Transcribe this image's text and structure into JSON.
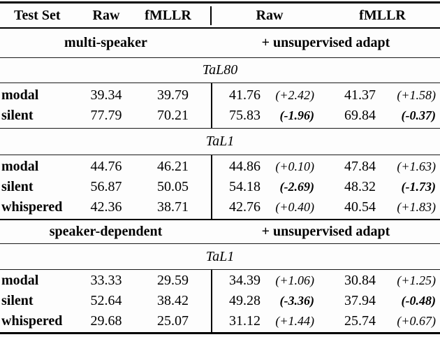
{
  "colors": {
    "text": "#000000",
    "background": "#fdfdfd",
    "rule": "#000000"
  },
  "table": {
    "header": {
      "test_set": "Test Set",
      "raw": "Raw",
      "fmllr": "fMLLR",
      "adapt_raw": "Raw",
      "adapt_fmllr": "fMLLR"
    },
    "sections": [
      {
        "left": "multi-speaker",
        "right": "+ unsupervised adapt",
        "groups": [
          {
            "dataset": "TaL80",
            "rows": [
              {
                "label": "modal",
                "raw": "39.34",
                "fmllr": "39.79",
                "adapt_raw": "41.76",
                "adapt_raw_delta": "(+2.42)",
                "adapt_fmllr": "41.37",
                "adapt_fmllr_delta": "(+1.58)"
              },
              {
                "label": "silent",
                "raw": "77.79",
                "fmllr": "70.21",
                "adapt_raw": "75.83",
                "adapt_raw_delta": "(-1.96)",
                "adapt_fmllr": "69.84",
                "adapt_fmllr_delta": "(-0.37)"
              }
            ]
          },
          {
            "dataset": "TaL1",
            "rows": [
              {
                "label": "modal",
                "raw": "44.76",
                "fmllr": "46.21",
                "adapt_raw": "44.86",
                "adapt_raw_delta": "(+0.10)",
                "adapt_fmllr": "47.84",
                "adapt_fmllr_delta": "(+1.63)"
              },
              {
                "label": "silent",
                "raw": "56.87",
                "fmllr": "50.05",
                "adapt_raw": "54.18",
                "adapt_raw_delta": "(-2.69)",
                "adapt_fmllr": "48.32",
                "adapt_fmllr_delta": "(-1.73)"
              },
              {
                "label": "whispered",
                "raw": "42.36",
                "fmllr": "38.71",
                "adapt_raw": "42.76",
                "adapt_raw_delta": "(+0.40)",
                "adapt_fmllr": "40.54",
                "adapt_fmllr_delta": "(+1.83)"
              }
            ]
          }
        ]
      },
      {
        "left": "speaker-dependent",
        "right": "+ unsupervised adapt",
        "groups": [
          {
            "dataset": "TaL1",
            "rows": [
              {
                "label": "modal",
                "raw": "33.33",
                "fmllr": "29.59",
                "adapt_raw": "34.39",
                "adapt_raw_delta": "(+1.06)",
                "adapt_fmllr": "30.84",
                "adapt_fmllr_delta": "(+1.25)"
              },
              {
                "label": "silent",
                "raw": "52.64",
                "fmllr": "38.42",
                "adapt_raw": "49.28",
                "adapt_raw_delta": "(-3.36)",
                "adapt_fmllr": "37.94",
                "adapt_fmllr_delta": "(-0.48)"
              },
              {
                "label": "whispered",
                "raw": "29.68",
                "fmllr": "25.07",
                "adapt_raw": "31.12",
                "adapt_raw_delta": "(+1.44)",
                "adapt_fmllr": "25.74",
                "adapt_fmllr_delta": "(+0.67)"
              }
            ]
          }
        ]
      }
    ]
  }
}
